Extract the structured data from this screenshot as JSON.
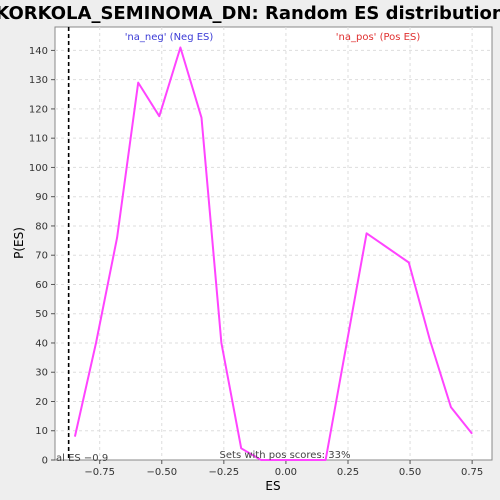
{
  "chart_data": {
    "type": "line",
    "title": "KORKOLA_SEMINOMA_DN: Random ES distribution",
    "xlabel": "ES",
    "ylabel": "P(ES)",
    "xlim": [
      -0.93,
      0.83
    ],
    "ylim": [
      0,
      148
    ],
    "x_ticks": [
      -0.75,
      -0.5,
      -0.25,
      0.0,
      0.25,
      0.5,
      0.75
    ],
    "x_tick_labels": [
      "−0.75",
      "−0.50",
      "−0.25",
      "0.00",
      "0.25",
      "0.50",
      "0.75"
    ],
    "y_ticks": [
      0,
      10,
      20,
      30,
      40,
      50,
      60,
      70,
      80,
      90,
      100,
      110,
      120,
      130,
      140
    ],
    "grid": true,
    "series": [
      {
        "color": "#ff44ff",
        "x": [
          -0.85,
          -0.765,
          -0.68,
          -0.595,
          -0.51,
          -0.425,
          -0.34,
          -0.26,
          -0.18,
          -0.1,
          0.0,
          0.16,
          0.325,
          0.495,
          0.58,
          0.665,
          0.75
        ],
        "y": [
          8,
          40,
          76,
          129,
          117.5,
          141,
          117,
          40,
          4,
          0,
          0,
          0,
          77.5,
          67.5,
          41,
          18,
          9
        ]
      }
    ],
    "reference_line": {
      "x": -0.875,
      "style": "dashed",
      "color": "#000000"
    },
    "legend": {
      "neg_label": "'na_neg' (Neg ES)",
      "pos_label": "'na_pos' (Pos ES)",
      "neg_color": "#3b3bd6",
      "pos_color": "#e03030"
    },
    "annotations": {
      "actual_es": "al ES −0.9",
      "pos_scores": "Sets with pos scores: 33%"
    },
    "colors": {
      "background": "#eeeeee",
      "plot_background": "#ffffff",
      "grid": "#dddddd"
    }
  }
}
